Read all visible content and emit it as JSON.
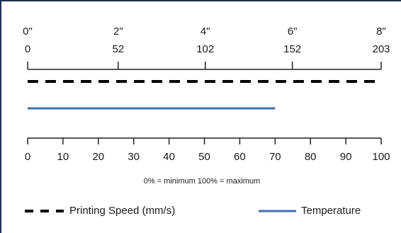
{
  "chart_data": {
    "type": "range",
    "x2lim": [
      0,
      203
    ],
    "x2ticks": [
      0,
      52,
      102,
      152,
      203
    ],
    "x2tick_inches": [
      "0\"",
      "2\"",
      "4\"",
      "6\"",
      "8\""
    ],
    "xlim": [
      0,
      100
    ],
    "xticks": [
      0,
      10,
      20,
      30,
      40,
      50,
      60,
      70,
      80,
      90,
      100
    ],
    "annotation": "0% = minimum  100% = maximum",
    "series": [
      {
        "name": "Printing Speed (mm/s)",
        "color": "#000000",
        "dashed": true,
        "values": [
          100
        ]
      },
      {
        "name": "Temperature",
        "color": "#3f6db3",
        "dashed": false,
        "values": [
          70
        ]
      }
    ]
  }
}
